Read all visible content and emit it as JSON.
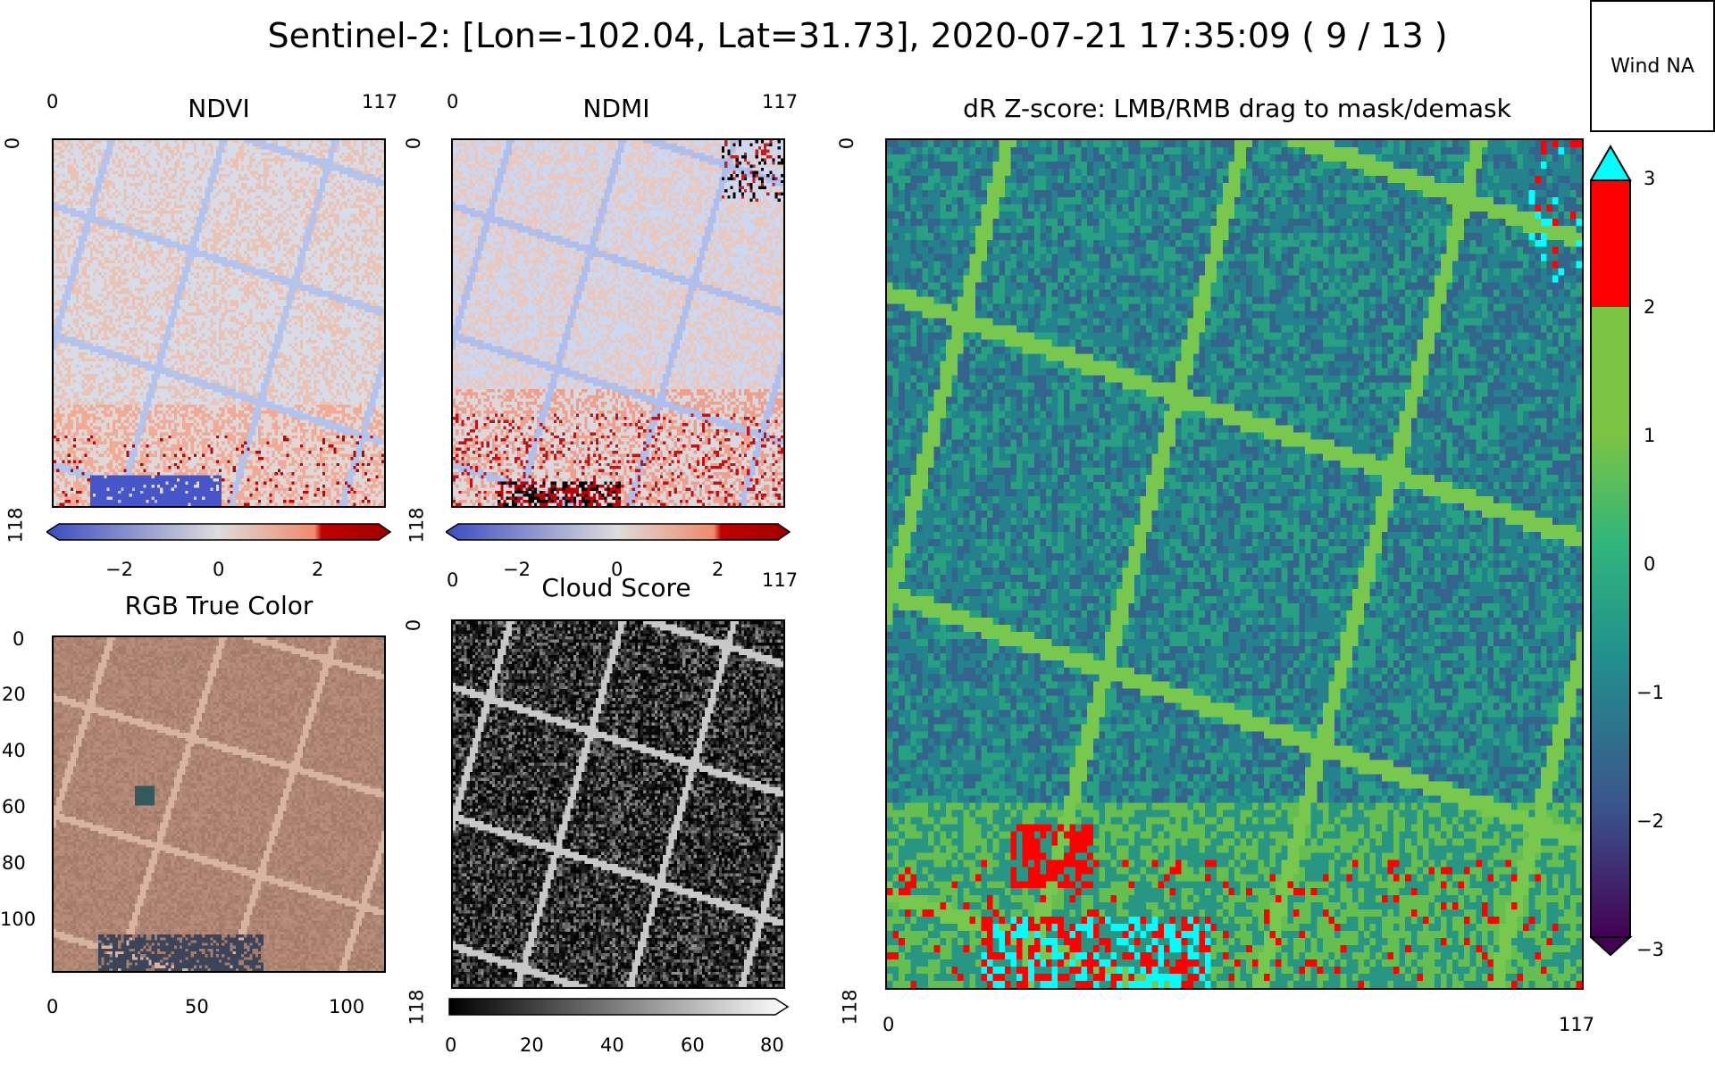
{
  "figure": {
    "title": "Sentinel-2: [Lon=-102.04, Lat=31.73], 2020-07-21 17:35:09 ( 9 / 13 )",
    "wind_button_label": "Wind NA"
  },
  "panels": {
    "ndvi": {
      "title": "NDVI",
      "x_ticks": [
        "0",
        "117"
      ],
      "y_ticks": [
        "0",
        "118"
      ],
      "colorbar_ticks": [
        "−2",
        "0",
        "2"
      ]
    },
    "ndmi": {
      "title": "NDMI",
      "x_ticks": [
        "0",
        "117"
      ],
      "y_ticks": [
        "0",
        "118"
      ],
      "colorbar_ticks": [
        "−2",
        "0",
        "2"
      ]
    },
    "rgb": {
      "title": "RGB True Color",
      "x_ticks": [
        "0",
        "50",
        "100"
      ],
      "y_ticks": [
        "0",
        "20",
        "40",
        "60",
        "80",
        "100"
      ]
    },
    "cloud": {
      "title": "Cloud Score",
      "x_ticks": [
        "0",
        "117"
      ],
      "y_ticks": [
        "0",
        "118"
      ],
      "colorbar_ticks": [
        "0",
        "20",
        "40",
        "60",
        "80"
      ]
    },
    "zscore": {
      "title": "dR Z-score: LMB/RMB drag to mask/demask",
      "x_ticks": [
        "0",
        "117"
      ],
      "y_ticks": [
        "0",
        "118"
      ],
      "colorbar_ticks": [
        "3",
        "2",
        "1",
        "0",
        "−1",
        "−2",
        "−3"
      ]
    }
  },
  "colors": {
    "zscore_high": "#ff0000",
    "zscore_extend_high": "#00ffff",
    "zscore_mid": "#7cc443",
    "zscore_low": "#440154",
    "ndvi_low": "#3b4cc0",
    "ndvi_high": "#b40426"
  }
}
